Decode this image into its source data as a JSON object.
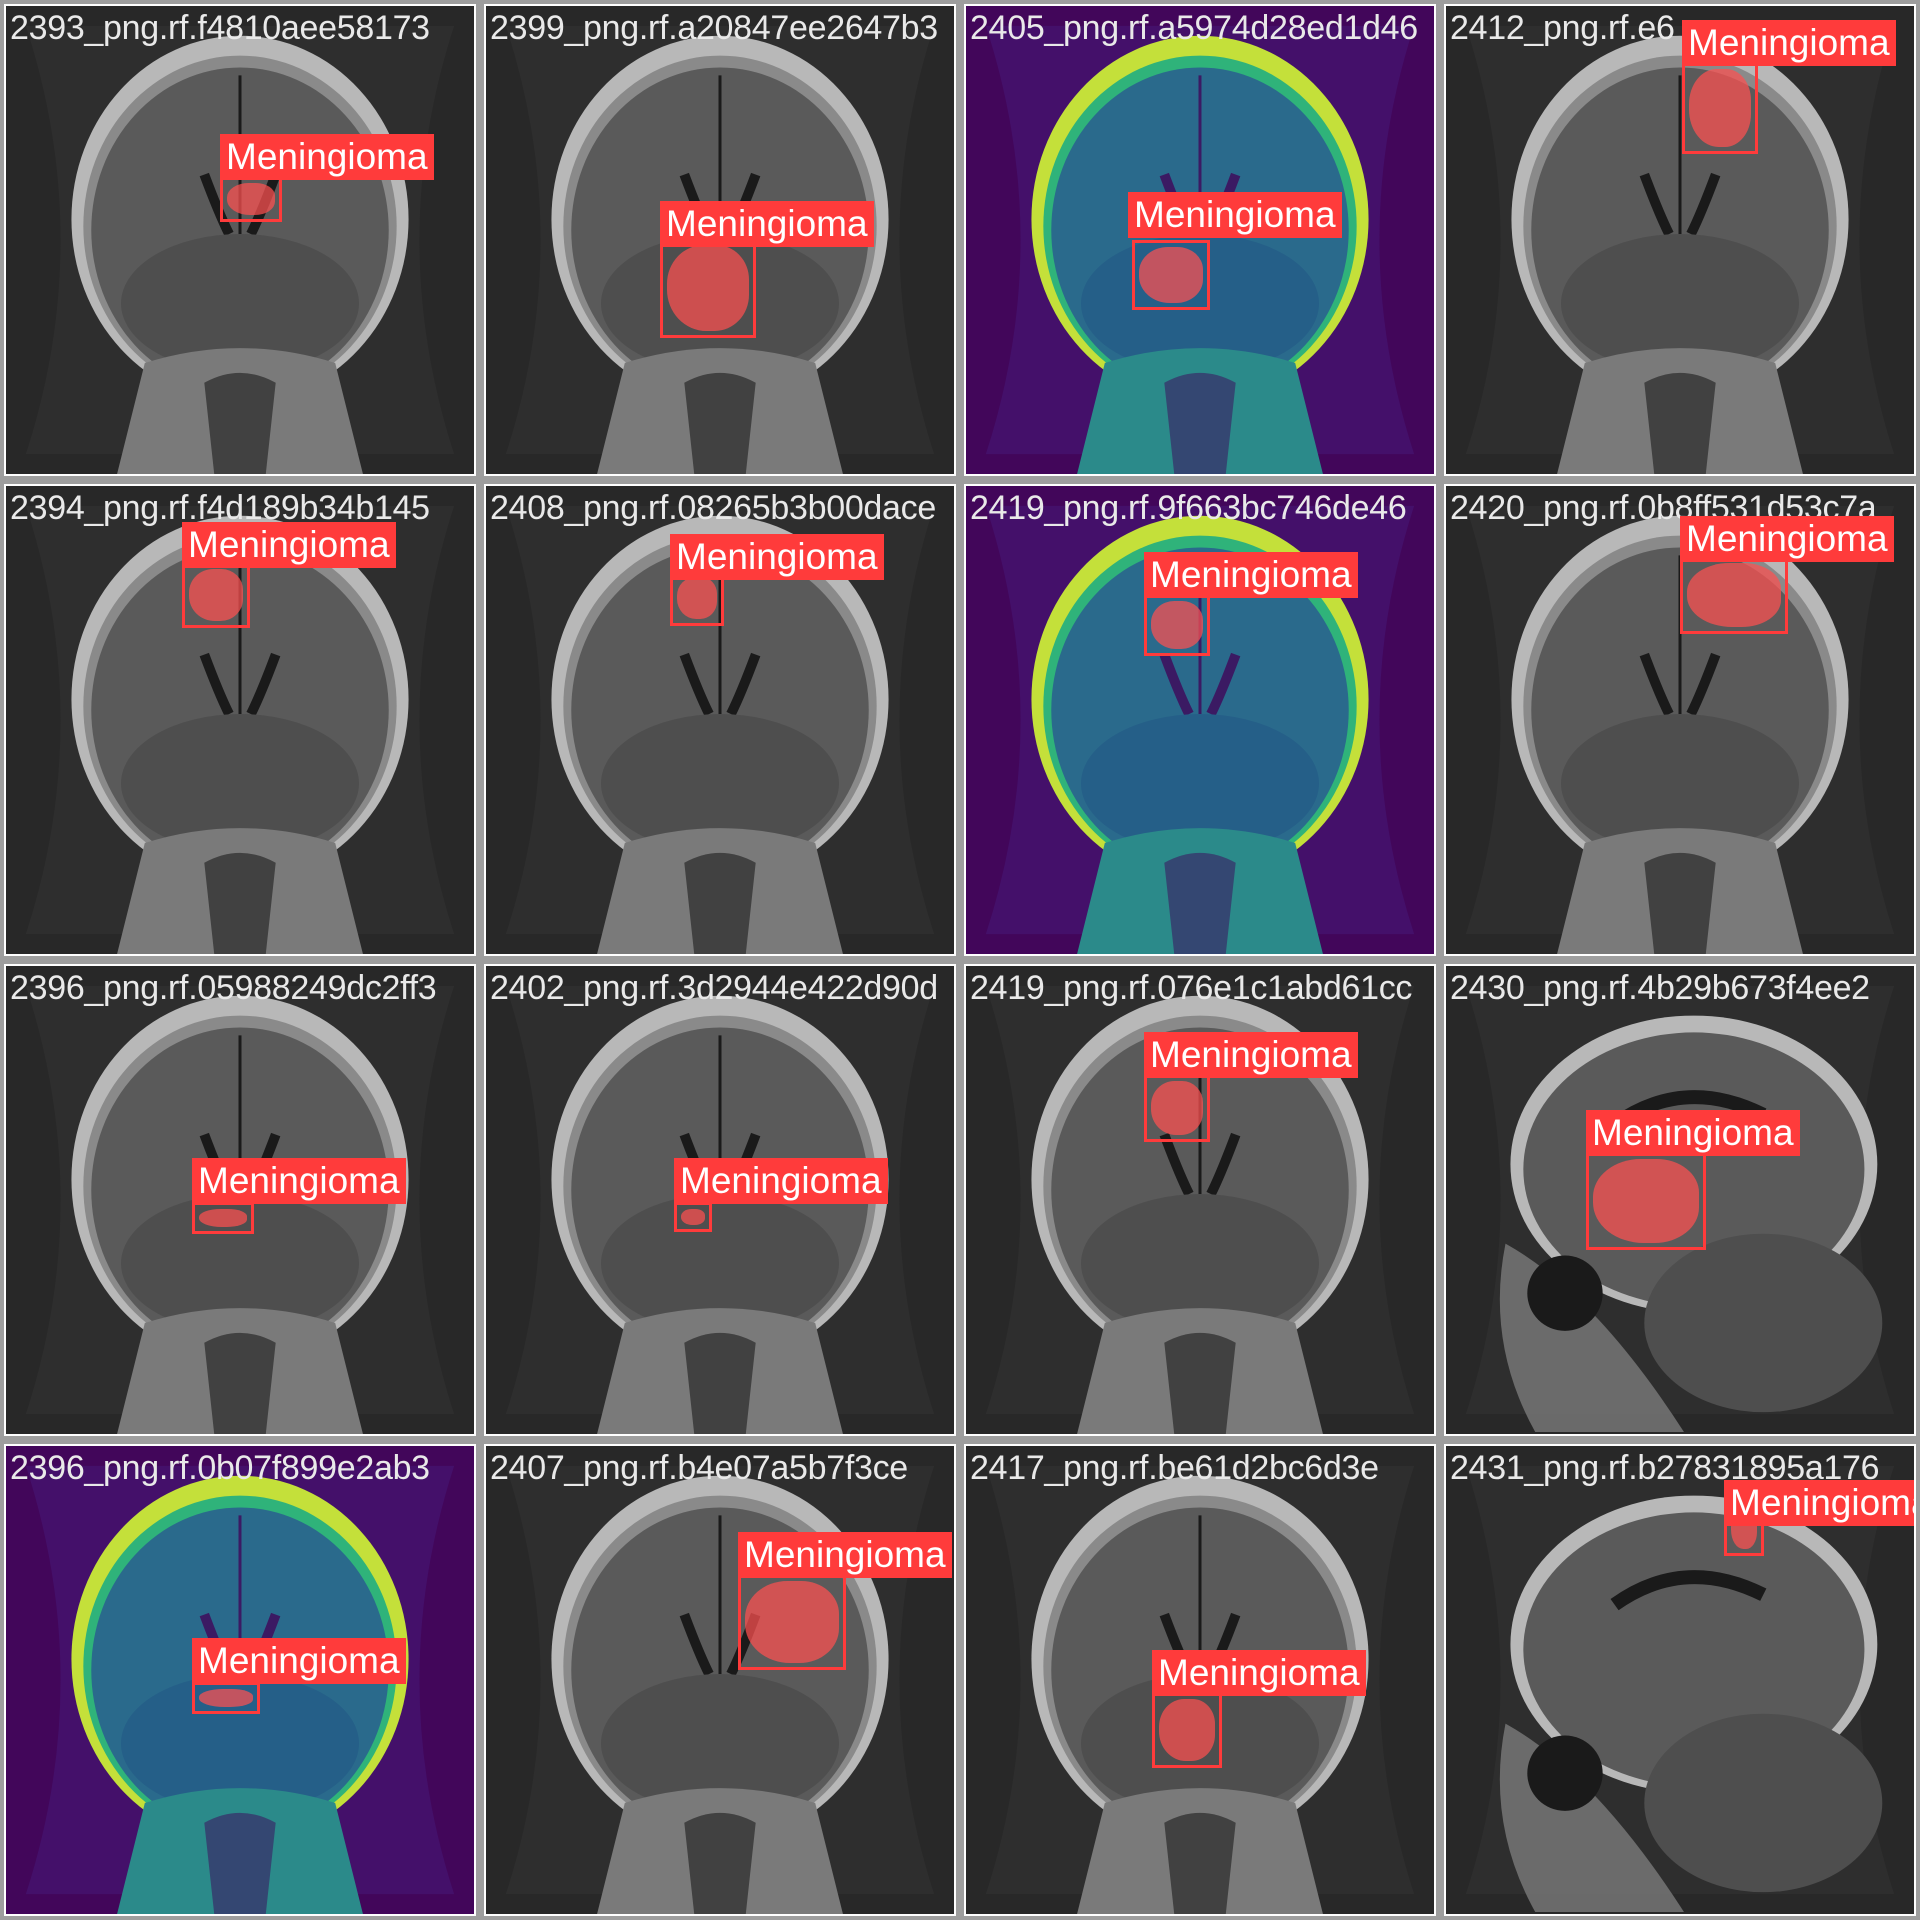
{
  "colors": {
    "box": "#ff3b3b",
    "fill": "rgba(255,80,80,0.72)",
    "label_text": "#ffffff",
    "border": "#ffffff",
    "grayscale_bg": "#282828",
    "viridis_bg": "#42065a"
  },
  "tiles": [
    {
      "filename": "2393_png.rf.f4810aee58173",
      "colormap": "gray",
      "label": "Meningioma"
    },
    {
      "filename": "2399_png.rf.a20847ee2647b3",
      "colormap": "gray",
      "label": "Meningioma"
    },
    {
      "filename": "2405_png.rf.a5974d28ed1d46",
      "colormap": "viridis",
      "label": "Meningioma"
    },
    {
      "filename": "2412_png.rf.e6",
      "colormap": "gray",
      "label": "Meningioma"
    },
    {
      "filename": "2394_png.rf.f4d189b34b145",
      "colormap": "gray",
      "label": "Meningioma"
    },
    {
      "filename": "2408_png.rf.08265b3b00dace",
      "colormap": "gray",
      "label": "Meningioma"
    },
    {
      "filename": "2419_png.rf.9f663bc746de46",
      "colormap": "viridis",
      "label": "Meningioma"
    },
    {
      "filename": "2420_png.rf.0b8ff531d53c7a",
      "colormap": "gray",
      "label": "Meningioma"
    },
    {
      "filename": "2396_png.rf.05988249dc2ff3",
      "colormap": "gray",
      "label": "Meningioma"
    },
    {
      "filename": "2402_png.rf.3d2944e422d90d",
      "colormap": "gray",
      "label": "Meningioma"
    },
    {
      "filename": "2419_png.rf.076e1c1abd61cc",
      "colormap": "gray",
      "label": "Meningioma"
    },
    {
      "filename": "2430_png.rf.4b29b673f4ee2",
      "colormap": "gray",
      "label": "Meningioma"
    },
    {
      "filename": "2396_png.rf.0b07f899e2ab3",
      "colormap": "viridis",
      "label": "Meningioma"
    },
    {
      "filename": "2407_png.rf.b4e07a5b7f3ce",
      "colormap": "gray",
      "label": "Meningioma"
    },
    {
      "filename": "2417_png.rf.be61d2bc6d3e",
      "colormap": "gray",
      "label": "Meningioma"
    },
    {
      "filename": "2431_png.rf.b27831895a176",
      "colormap": "gray",
      "label": "Meningioma"
    }
  ]
}
